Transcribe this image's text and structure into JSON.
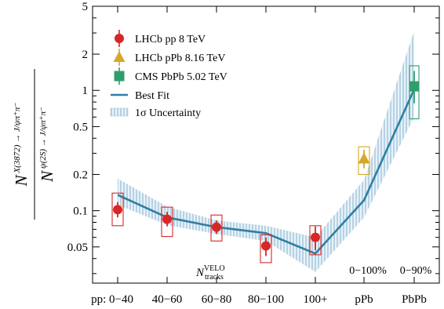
{
  "chart_data": {
    "type": "scatter",
    "yscale": "log",
    "ylim": [
      0.025,
      5
    ],
    "y_ticks": [
      {
        "v": 0.05,
        "label": "0.05"
      },
      {
        "v": 0.1,
        "label": "0.1"
      },
      {
        "v": 0.2,
        "label": "0.2"
      },
      {
        "v": 0.5,
        "label": "0.5"
      },
      {
        "v": 1,
        "label": "1"
      },
      {
        "v": 2,
        "label": "2"
      },
      {
        "v": 5,
        "label": "5"
      }
    ],
    "ylabel": {
      "num": "N X(3872) → J/ψπ⁺π⁻",
      "den": "N ψ(2S) → J/ψπ⁺π⁻"
    },
    "categories": [
      "pp: 0−40",
      "40−60",
      "60−80",
      "80−100",
      "100+",
      "pPb",
      "PbPb"
    ],
    "annotations": [
      {
        "text": "N tracks VELO"
      },
      {
        "text": "0−100%"
      },
      {
        "text": "0−90%"
      }
    ],
    "series": [
      {
        "name": "LHCb pp 8 TeV",
        "marker": "circle",
        "color": "#d62728",
        "points": [
          {
            "category": "pp: 0−40",
            "y": 0.102,
            "stat_lo": 0.088,
            "stat_hi": 0.118,
            "sys_lo": 0.075,
            "sys_hi": 0.14
          },
          {
            "category": "40−60",
            "y": 0.085,
            "stat_lo": 0.074,
            "stat_hi": 0.098,
            "sys_lo": 0.061,
            "sys_hi": 0.107
          },
          {
            "category": "60−80",
            "y": 0.073,
            "stat_lo": 0.064,
            "stat_hi": 0.083,
            "sys_lo": 0.056,
            "sys_hi": 0.092
          },
          {
            "category": "80−100",
            "y": 0.051,
            "stat_lo": 0.042,
            "stat_hi": 0.06,
            "sys_lo": 0.037,
            "sys_hi": 0.063
          },
          {
            "category": "100+",
            "y": 0.06,
            "stat_lo": 0.047,
            "stat_hi": 0.074,
            "sys_lo": 0.043,
            "sys_hi": 0.075
          }
        ]
      },
      {
        "name": "LHCb pPb 8.16 TeV",
        "marker": "triangle",
        "color": "#d4a82a",
        "points": [
          {
            "category": "pPb",
            "y": 0.27,
            "stat_lo": 0.225,
            "stat_hi": 0.32,
            "sys_lo": 0.2,
            "sys_hi": 0.34
          }
        ]
      },
      {
        "name": "CMS PbPb 5.02 TeV",
        "marker": "square",
        "color": "#2e9e6b",
        "points": [
          {
            "category": "PbPb",
            "y": 1.08,
            "stat_lo": 0.78,
            "stat_hi": 1.45,
            "sys_lo": 0.58,
            "sys_hi": 1.6
          }
        ]
      },
      {
        "name": "Best Fit",
        "marker": "line",
        "color": "#2e7fa3",
        "values": [
          0.135,
          0.088,
          0.073,
          0.065,
          0.044,
          0.122,
          1.02
        ]
      },
      {
        "name": "1σ Uncertainty",
        "marker": "band",
        "color": "#a8cbe0",
        "lower": [
          0.112,
          0.076,
          0.064,
          0.056,
          0.031,
          0.088,
          0.6
        ],
        "upper": [
          0.185,
          0.108,
          0.083,
          0.075,
          0.06,
          0.18,
          3.1
        ]
      }
    ],
    "legend_position": "top-left",
    "grid": false
  }
}
